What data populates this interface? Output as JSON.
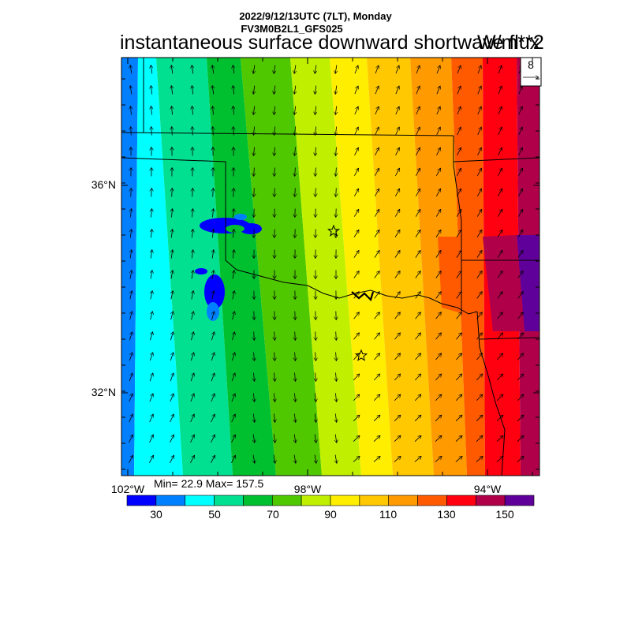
{
  "header": {
    "datetime": "2022/9/12/13UTC (7LT), Monday",
    "model": "FV3M0B2L1_GFS025",
    "title": "instantaneous surface downward shortwave flux",
    "units": "W/m**2"
  },
  "stats": {
    "text": "Min= 22.9 Max= 157.5"
  },
  "reference_vector": {
    "label": "8"
  },
  "axes": {
    "lat_labels": [
      "36°N",
      "32°N"
    ],
    "lon_labels": [
      "102°W",
      "98°W",
      "94°W"
    ]
  },
  "colorbar": {
    "colors": [
      "#0000ff",
      "#0080ff",
      "#00ffff",
      "#00e090",
      "#00c030",
      "#50c800",
      "#c0f000",
      "#ffee00",
      "#ffc800",
      "#ff9a00",
      "#ff5a00",
      "#ff0010",
      "#b0004a",
      "#60009a"
    ],
    "tick_labels": [
      "30",
      "50",
      "70",
      "90",
      "110",
      "130",
      "150"
    ]
  },
  "map": {
    "region": "Oklahoma / Texas",
    "markers": [
      "star",
      "star"
    ]
  }
}
